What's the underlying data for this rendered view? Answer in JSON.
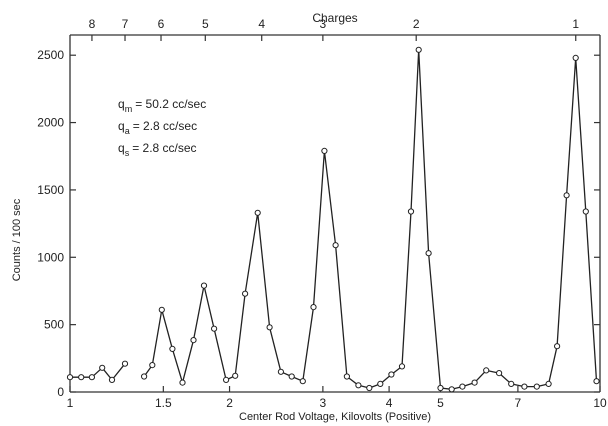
{
  "chart_data": {
    "type": "line",
    "title": "",
    "top_axis_title": "Charges",
    "top_axis_ticks": [
      {
        "x": 1.1,
        "label": "8"
      },
      {
        "x": 1.27,
        "label": "7"
      },
      {
        "x": 1.485,
        "label": "6"
      },
      {
        "x": 1.8,
        "label": "5"
      },
      {
        "x": 2.3,
        "label": "4"
      },
      {
        "x": 3.0,
        "label": "3"
      },
      {
        "x": 4.5,
        "label": "2"
      },
      {
        "x": 9.0,
        "label": "1"
      }
    ],
    "xlabel": "Center Rod Voltage, Kilovolts (Positive)",
    "ylabel": "Counts / 100 sec",
    "x_scale": "log",
    "xlim": [
      1,
      10
    ],
    "ylim": [
      0,
      2650
    ],
    "x_ticks": [
      1,
      1.5,
      2,
      3,
      4,
      5,
      7,
      10
    ],
    "x_tick_labels": [
      "1",
      "1.5",
      "2",
      "3",
      "4",
      "5",
      "7",
      "10"
    ],
    "y_ticks": [
      0,
      500,
      1000,
      1500,
      2000,
      2500
    ],
    "y_tick_labels": [
      "0",
      "500",
      "1000",
      "1500",
      "2000",
      "2500"
    ],
    "annotations": [
      {
        "sym": "q",
        "sub": "m",
        "text": "= 50.2  cc/sec"
      },
      {
        "sym": "q",
        "sub": "a",
        "text": "=  2.8  cc/sec"
      },
      {
        "sym": "q",
        "sub": "s",
        "text": "=  2.8  cc/sec"
      }
    ],
    "series": [
      {
        "segments": [
          [
            [
              1.0,
              110
            ],
            [
              1.05,
              110
            ],
            [
              1.1,
              110
            ],
            [
              1.15,
              180
            ],
            [
              1.2,
              90
            ],
            [
              1.27,
              210
            ]
          ],
          [
            [
              1.38,
              115
            ],
            [
              1.43,
              200
            ],
            [
              1.49,
              610
            ],
            [
              1.56,
              320
            ],
            [
              1.63,
              70
            ],
            [
              1.71,
              385
            ],
            [
              1.79,
              790
            ],
            [
              1.87,
              470
            ],
            [
              1.97,
              90
            ],
            [
              2.05,
              120
            ],
            [
              2.14,
              730
            ],
            [
              2.26,
              1330
            ],
            [
              2.38,
              480
            ],
            [
              2.5,
              150
            ],
            [
              2.62,
              115
            ],
            [
              2.75,
              80
            ],
            [
              2.88,
              630
            ],
            [
              3.02,
              1790
            ],
            [
              3.17,
              1090
            ],
            [
              3.33,
              115
            ],
            [
              3.5,
              50
            ],
            [
              3.67,
              30
            ],
            [
              3.85,
              60
            ],
            [
              4.04,
              130
            ],
            [
              4.23,
              190
            ],
            [
              4.4,
              1340
            ],
            [
              4.55,
              2540
            ],
            [
              4.75,
              1030
            ],
            [
              5.0,
              30
            ],
            [
              5.25,
              20
            ],
            [
              5.5,
              40
            ],
            [
              5.8,
              70
            ],
            [
              6.1,
              160
            ],
            [
              6.45,
              140
            ],
            [
              6.8,
              60
            ],
            [
              7.2,
              40
            ],
            [
              7.6,
              40
            ],
            [
              8.0,
              60
            ],
            [
              8.3,
              340
            ],
            [
              8.65,
              1460
            ],
            [
              9.0,
              2480
            ],
            [
              9.4,
              1340
            ],
            [
              9.85,
              80
            ]
          ]
        ]
      }
    ]
  }
}
